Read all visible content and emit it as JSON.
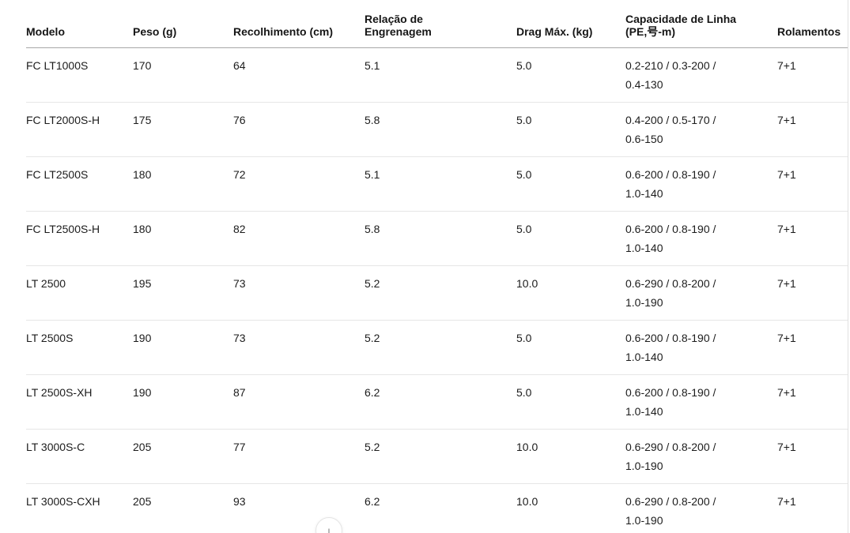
{
  "table": {
    "columns": [
      {
        "id": "modelo",
        "label": "Modelo"
      },
      {
        "id": "peso",
        "label": "Peso (g)"
      },
      {
        "id": "recolhimento",
        "label": "Recolhimento (cm)"
      },
      {
        "id": "relacao",
        "label": "Relação de\nEngrenagem"
      },
      {
        "id": "drag",
        "label": "Drag Máx. (kg)"
      },
      {
        "id": "capacidade",
        "label": "Capacidade de Linha\n(PE,号-m)"
      },
      {
        "id": "rolamentos",
        "label": "Rolamentos"
      }
    ],
    "rows": [
      {
        "cells": [
          "FC LT1000S",
          "170",
          "64",
          "5.1",
          "5.0",
          "0.2-210 / 0.3-200 /\n0.4-130",
          "7+1"
        ]
      },
      {
        "cells": [
          "FC LT2000S-H",
          "175",
          "76",
          "5.8",
          "5.0",
          "0.4-200 / 0.5-170 /\n0.6-150",
          "7+1"
        ]
      },
      {
        "cells": [
          "FC LT2500S",
          "180",
          "72",
          "5.1",
          "5.0",
          "0.6-200 / 0.8-190 /\n1.0-140",
          "7+1"
        ]
      },
      {
        "cells": [
          "FC LT2500S-H",
          "180",
          "82",
          "5.8",
          "5.0",
          "0.6-200 / 0.8-190 /\n1.0-140",
          "7+1"
        ]
      },
      {
        "cells": [
          "LT 2500",
          "195",
          "73",
          "5.2",
          "10.0",
          "0.6-290 / 0.8-200 /\n1.0-190",
          "7+1"
        ]
      },
      {
        "cells": [
          "LT 2500S",
          "190",
          "73",
          "5.2",
          "5.0",
          "0.6-200 / 0.8-190 /\n1.0-140",
          "7+1"
        ]
      },
      {
        "cells": [
          "LT 2500S-XH",
          "190",
          "87",
          "6.2",
          "5.0",
          "0.6-200 / 0.8-190 /\n1.0-140",
          "7+1"
        ]
      },
      {
        "cells": [
          "LT 3000S-C",
          "205",
          "77",
          "5.2",
          "10.0",
          "0.6-290 / 0.8-200 /\n1.0-190",
          "7+1"
        ]
      },
      {
        "cells": [
          "LT 3000S-CXH",
          "205",
          "93",
          "6.2",
          "10.0",
          "0.6-290 / 0.8-200 /\n1.0-190",
          "7+1"
        ]
      }
    ]
  },
  "load_more": {
    "icon": "arrow-down",
    "glyph": "↓"
  },
  "colors": {
    "header_border": "#a8a8a8",
    "row_border": "#e6e6e6",
    "text": "#1c1c1c"
  }
}
